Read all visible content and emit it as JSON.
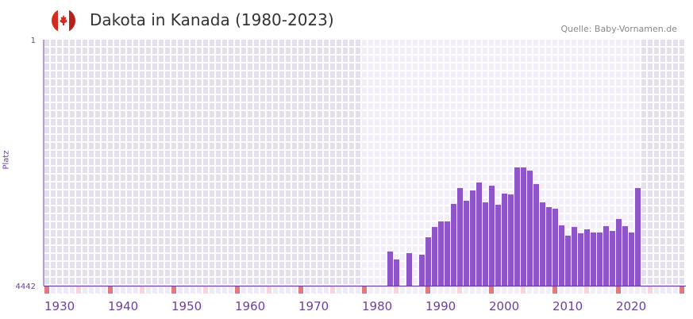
{
  "header": {
    "title": "Dakota in Kanada (1980-2023)",
    "source": "Quelle: Baby-Vornamen.de",
    "flag": "canada-flag"
  },
  "colors": {
    "bar": "#8e55c8",
    "axis": "#6a3fa0",
    "marker_decade": "#e8747c",
    "marker_half": "#f3d5de",
    "bg_in": "#f1eef9",
    "bg_out": "#e4dfec"
  },
  "chart_data": {
    "type": "bar",
    "title": "Dakota in Kanada (1980-2023)",
    "xlabel": "",
    "ylabel": "Platz",
    "y_tick_labels": [
      "1",
      "4442"
    ],
    "ylim": [
      4442,
      1
    ],
    "xlim": [
      1930,
      2030
    ],
    "x_tick_labels": [
      "1930",
      "1940",
      "1950",
      "1960",
      "1970",
      "1980",
      "1990",
      "2000",
      "2010",
      "2020"
    ],
    "highlight_range": [
      1980,
      2023
    ],
    "years": [
      1984,
      1985,
      1987,
      1989,
      1990,
      1991,
      1992,
      1993,
      1994,
      1995,
      1996,
      1997,
      1998,
      1999,
      2000,
      2001,
      2002,
      2003,
      2004,
      2005,
      2006,
      2007,
      2008,
      2009,
      2010,
      2011,
      2012,
      2013,
      2014,
      2015,
      2016,
      2017,
      2018,
      2019,
      2020,
      2021,
      2022,
      2023
    ],
    "values": [
      3825,
      3969,
      3854,
      3883,
      3568,
      3382,
      3282,
      3282,
      2966,
      2680,
      2909,
      2723,
      2580,
      2938,
      2637,
      2981,
      2780,
      2795,
      2307,
      2307,
      2365,
      2608,
      2938,
      3024,
      3052,
      3353,
      3539,
      3382,
      3496,
      3425,
      3482,
      3482,
      3368,
      3454,
      3239,
      3368,
      3482,
      2680
    ]
  }
}
